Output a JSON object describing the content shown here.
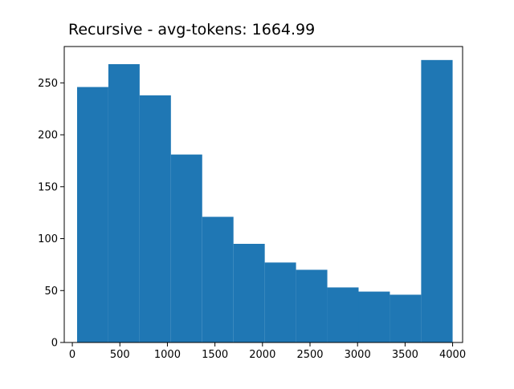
{
  "chart_data": {
    "type": "bar",
    "title": "Recursive - avg-tokens: 1664.99",
    "xlabel": "",
    "ylabel": "",
    "xlim": [
      -85,
      4105
    ],
    "ylim": [
      0,
      285
    ],
    "bins": [
      {
        "x0": 50,
        "x1": 379,
        "count": 246
      },
      {
        "x0": 379,
        "x1": 708,
        "count": 268
      },
      {
        "x0": 708,
        "x1": 1037,
        "count": 238
      },
      {
        "x0": 1037,
        "x1": 1366,
        "count": 181
      },
      {
        "x0": 1366,
        "x1": 1695,
        "count": 121
      },
      {
        "x0": 1695,
        "x1": 2024,
        "count": 95
      },
      {
        "x0": 2024,
        "x1": 2353,
        "count": 77
      },
      {
        "x0": 2353,
        "x1": 2682,
        "count": 70
      },
      {
        "x0": 2682,
        "x1": 3011,
        "count": 53
      },
      {
        "x0": 3011,
        "x1": 3340,
        "count": 49
      },
      {
        "x0": 3340,
        "x1": 3669,
        "count": 46
      },
      {
        "x0": 3669,
        "x1": 4000,
        "count": 272
      }
    ],
    "x_ticks": [
      0,
      500,
      1000,
      1500,
      2000,
      2500,
      3000,
      3500,
      4000
    ],
    "y_ticks": [
      0,
      50,
      100,
      150,
      200,
      250
    ],
    "bar_color": "#1f77b4",
    "grid": false,
    "legend": "none"
  }
}
